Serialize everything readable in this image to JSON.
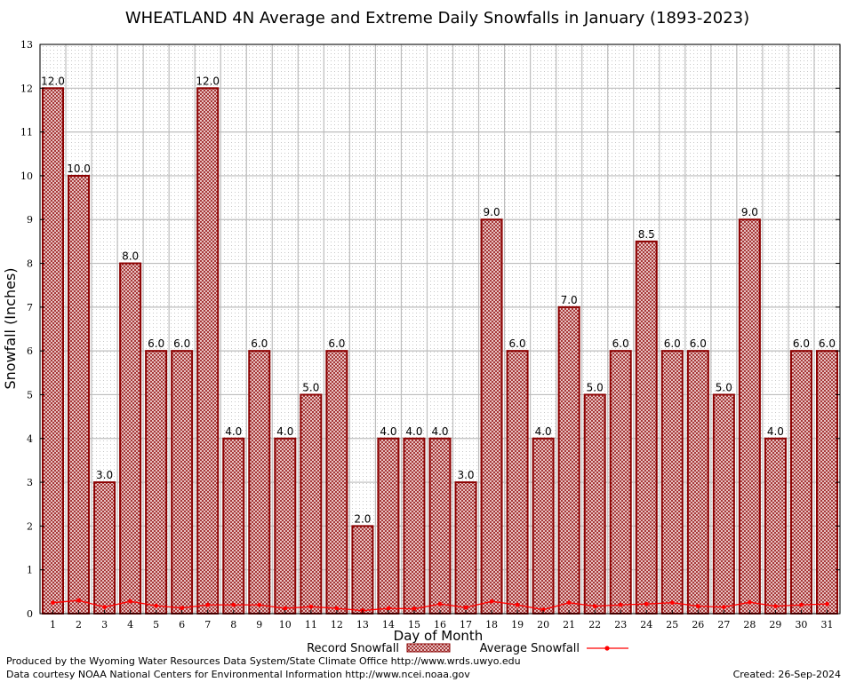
{
  "chart_data": {
    "type": "bar",
    "title": "WHEATLAND 4N Average and Extreme Daily Snowfalls in January (1893-2023)",
    "xlabel": "Day of Month",
    "ylabel": "Snowfall (Inches)",
    "ylim": [
      0,
      13
    ],
    "yticks": [
      "0",
      "1",
      "2",
      "3",
      "4",
      "5",
      "6",
      "7",
      "8",
      "9",
      "10",
      "11",
      "12",
      "13"
    ],
    "categories": [
      "1",
      "2",
      "3",
      "4",
      "5",
      "6",
      "7",
      "8",
      "9",
      "10",
      "11",
      "12",
      "13",
      "14",
      "15",
      "16",
      "17",
      "18",
      "19",
      "20",
      "21",
      "22",
      "23",
      "24",
      "25",
      "26",
      "27",
      "28",
      "29",
      "30",
      "31"
    ],
    "series": [
      {
        "name": "Record Snowfall",
        "type": "bar",
        "color": "#8b0000",
        "values": [
          12.0,
          10.0,
          3.0,
          8.0,
          6.0,
          6.0,
          12.0,
          4.0,
          6.0,
          4.0,
          5.0,
          6.0,
          2.0,
          4.0,
          4.0,
          4.0,
          3.0,
          9.0,
          6.0,
          4.0,
          7.0,
          5.0,
          6.0,
          8.5,
          6.0,
          6.0,
          5.0,
          9.0,
          4.0,
          6.0,
          6.0
        ],
        "labels": [
          "12.0",
          "10.0",
          "3.0",
          "8.0",
          "6.0",
          "6.0",
          "12.0",
          "4.0",
          "6.0",
          "4.0",
          "5.0",
          "6.0",
          "2.0",
          "4.0",
          "4.0",
          "4.0",
          "3.0",
          "9.0",
          "6.0",
          "4.0",
          "7.0",
          "5.0",
          "6.0",
          "8.5",
          "6.0",
          "6.0",
          "5.0",
          "9.0",
          "4.0",
          "6.0",
          "6.0"
        ]
      },
      {
        "name": "Average Snowfall",
        "type": "line",
        "color": "#ff0000",
        "values": [
          0.25,
          0.3,
          0.15,
          0.28,
          0.18,
          0.13,
          0.2,
          0.2,
          0.2,
          0.12,
          0.16,
          0.12,
          0.07,
          0.12,
          0.11,
          0.22,
          0.14,
          0.28,
          0.2,
          0.09,
          0.25,
          0.17,
          0.2,
          0.22,
          0.25,
          0.17,
          0.15,
          0.26,
          0.17,
          0.2,
          0.22
        ]
      }
    ],
    "legend": [
      "Record Snowfall",
      "Average Snowfall"
    ],
    "grid": true
  },
  "footer": {
    "produced_by": "Produced by the Wyoming Water Resources Data System/State Climate Office http://www.wrds.uwyo.edu",
    "data_courtesy": "Data courtesy NOAA National Centers for Environmental Information http://www.ncei.noaa.gov",
    "created": "Created:  26-Sep-2024"
  }
}
